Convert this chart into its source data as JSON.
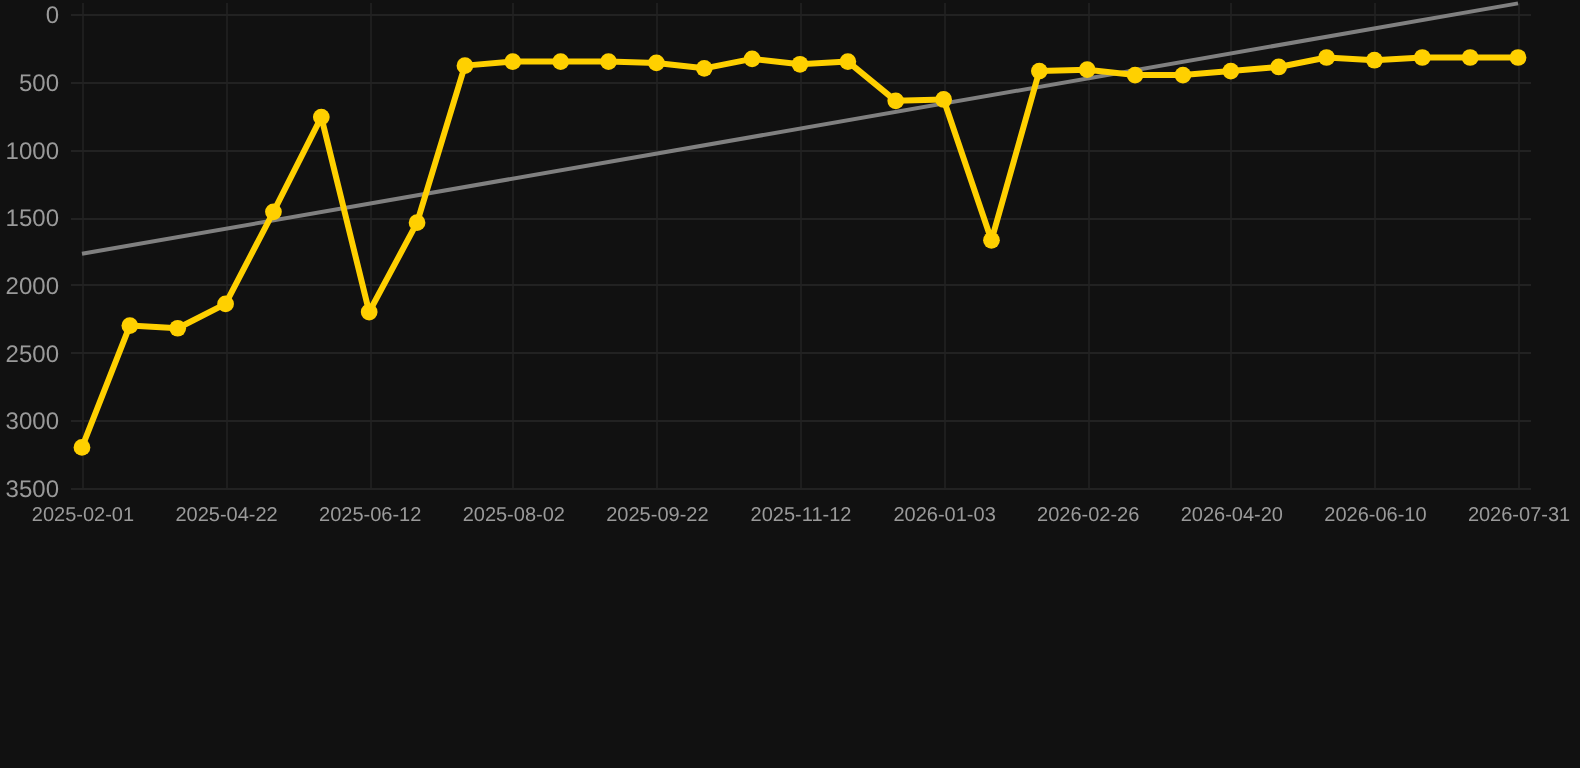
{
  "chart_data": {
    "type": "line",
    "categories": [
      "2025-02-01",
      null,
      null,
      "2025-04-22",
      null,
      null,
      "2025-06-12",
      null,
      null,
      "2025-08-02",
      null,
      null,
      "2025-09-22",
      null,
      null,
      "2025-11-12",
      null,
      null,
      "2026-01-03",
      null,
      null,
      "2026-02-26",
      null,
      null,
      "2026-04-20",
      null,
      null,
      "2026-06-10",
      null,
      null,
      "2026-07-31"
    ],
    "series": [
      {
        "color": "#ffd000",
        "values": [
          3200,
          2300,
          2320,
          2140,
          1460,
          760,
          2200,
          1540,
          380,
          350,
          350,
          350,
          360,
          400,
          330,
          370,
          350,
          640,
          630,
          1670,
          420,
          410,
          450,
          450,
          420,
          390,
          320,
          340,
          320,
          320,
          320
        ]
      },
      {
        "type": "line",
        "color": "#808080",
        "marker": "none",
        "values": [
          1770,
          null,
          null,
          null,
          null,
          null,
          null,
          null,
          null,
          null,
          null,
          null,
          null,
          null,
          null,
          null,
          null,
          null,
          null,
          null,
          null,
          null,
          null,
          null,
          null,
          null,
          null,
          null,
          null,
          null,
          -80
        ]
      }
    ],
    "ylim": [
      3500,
      -90
    ],
    "yticks": [
      0,
      500,
      1000,
      1500,
      2000,
      2500,
      3000,
      3500
    ],
    "grid": true,
    "marker": "circle",
    "line_style": "solid"
  }
}
